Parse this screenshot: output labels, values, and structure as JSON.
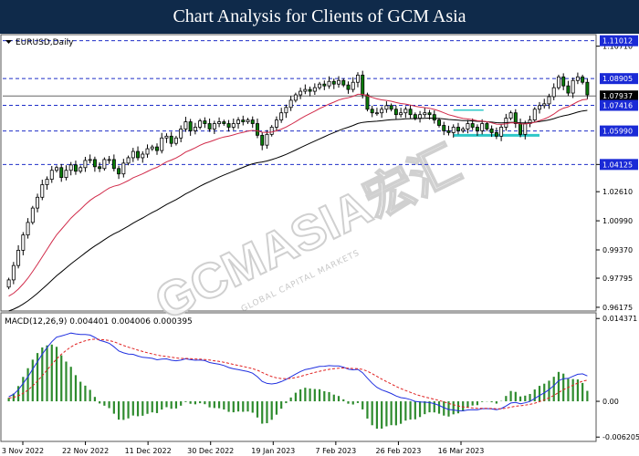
{
  "header": {
    "title": "Chart Analysis for Clients of GCM Asia"
  },
  "chart_data": {
    "type": "candlestick",
    "symbol_label": "EURUSD,Daily",
    "watermark": "GCMASIA宏汇",
    "watermark_sub": "GLOBAL CAPITAL MARKETS",
    "price_axis": {
      "ylim": [
        0.9602,
        1.113
      ],
      "ticks": [
        "1.10710",
        "1.04125",
        "1.02610",
        "1.00990",
        "0.99370",
        "0.97795",
        "0.96175"
      ],
      "tick_values": [
        1.1071,
        1.04125,
        1.0261,
        1.0099,
        0.9937,
        0.97795,
        0.96175
      ],
      "levels": [
        {
          "label": "1.11012",
          "value": 1.11012,
          "style": "boxed"
        },
        {
          "label": "1.08905",
          "value": 1.08905,
          "style": "boxed"
        },
        {
          "label": "1.07937",
          "value": 1.07937,
          "style": "current"
        },
        {
          "label": "1.07416",
          "value": 1.07416,
          "style": "boxed"
        },
        {
          "label": "1.05990",
          "value": 1.0599,
          "style": "boxed"
        },
        {
          "label": "1.04125",
          "value": 1.04125,
          "style": "boxed"
        }
      ]
    },
    "date_labels": [
      "3 Nov 2022",
      "22 Nov 2022",
      "11 Dec 2022",
      "30 Dec 2022",
      "19 Jan 2023",
      "7 Feb 2023",
      "26 Feb 2023",
      "16 Mar 2023"
    ],
    "candles_close": [
      0.977,
      0.985,
      0.9935,
      1.002,
      1.009,
      1.017,
      1.023,
      1.03,
      1.033,
      1.038,
      1.0395,
      1.034,
      1.038,
      1.041,
      1.0375,
      1.0395,
      1.0435,
      1.044,
      1.04,
      1.039,
      1.044,
      1.044,
      1.039,
      1.036,
      1.042,
      1.045,
      1.0485,
      1.045,
      1.047,
      1.05,
      1.051,
      1.049,
      1.056,
      1.057,
      1.053,
      1.056,
      1.061,
      1.065,
      1.06,
      1.062,
      1.0655,
      1.064,
      1.061,
      1.064,
      1.065,
      1.064,
      1.062,
      1.064,
      1.066,
      1.065,
      1.066,
      1.064,
      1.0575,
      1.052,
      1.058,
      1.062,
      1.066,
      1.07,
      1.073,
      1.077,
      1.08,
      1.082,
      1.083,
      1.082,
      1.084,
      1.086,
      1.085,
      1.0875,
      1.086,
      1.088,
      1.0855,
      1.083,
      1.087,
      1.091,
      1.08,
      1.072,
      1.07,
      1.07,
      1.072,
      1.074,
      1.072,
      1.069,
      1.07,
      1.072,
      1.069,
      1.067,
      1.069,
      1.07,
      1.069,
      1.066,
      1.063,
      1.06,
      1.059,
      1.062,
      1.06,
      1.061,
      1.064,
      1.062,
      1.06,
      1.064,
      1.061,
      1.059,
      1.057,
      1.062,
      1.067,
      1.07,
      1.064,
      1.058,
      1.064,
      1.066,
      1.072,
      1.074,
      1.075,
      1.079,
      1.084,
      1.09,
      1.085,
      1.081,
      1.088,
      1.09,
      1.087,
      1.08
    ],
    "ma_fast_last": 1.077,
    "ma_slow_last": 1.072,
    "consolidation_box": {
      "x_index_range": [
        93,
        111
      ],
      "y_range": [
        1.0575,
        1.0715
      ]
    },
    "macd": {
      "label": "MACD(12,26,9) 0.004401 0.004006 0.000395",
      "ylim": [
        -0.0068,
        0.0152
      ],
      "ticks": [
        "0.014371",
        "0.00",
        "-0.006205"
      ],
      "tick_values": [
        0.014371,
        0.0,
        -0.006205
      ],
      "main_start": 0.0008,
      "signal_start": 0.0005,
      "main_last": 0.0044,
      "signal_last": 0.004
    },
    "colors": {
      "bull": "#000000",
      "bear_body": "#0a7d0a",
      "fast_ma": "#d12b4a",
      "slow_ma": "#000000",
      "level_line": "#1e2ec8",
      "box": "#2ec8c8",
      "macd_main": "#2030e0",
      "macd_signal": "#e02020",
      "macd_hist": "#2e8b2e"
    }
  }
}
